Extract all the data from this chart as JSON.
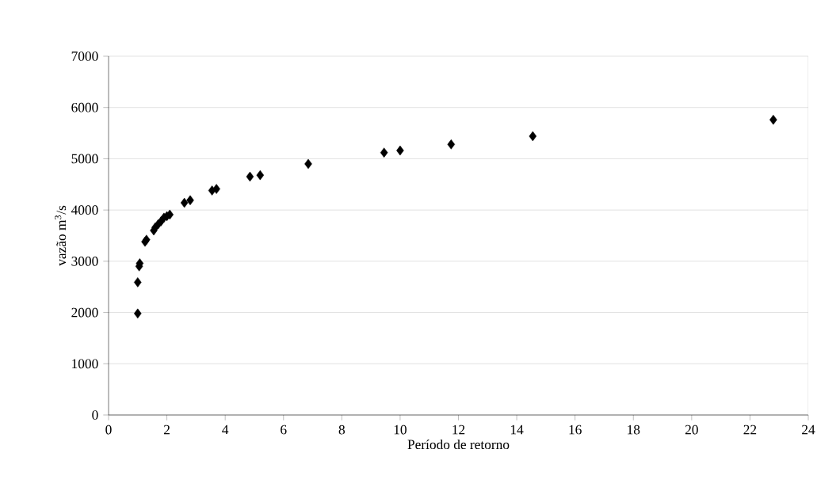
{
  "chart_data": {
    "type": "scatter",
    "xlabel": "Período de retorno",
    "ylabel": "vazão m$^{3}$/s",
    "x": [
      1.0,
      1.0,
      1.05,
      1.07,
      1.25,
      1.3,
      1.55,
      1.6,
      1.7,
      1.8,
      1.9,
      2.0,
      2.1,
      2.6,
      2.8,
      3.55,
      3.7,
      4.85,
      5.2,
      6.85,
      9.45,
      10.0,
      11.75,
      14.55,
      22.8
    ],
    "values": [
      1980,
      2590,
      2900,
      2960,
      3380,
      3420,
      3600,
      3660,
      3720,
      3780,
      3850,
      3880,
      3910,
      4140,
      4190,
      4380,
      4410,
      4650,
      4680,
      4900,
      5120,
      5160,
      5280,
      5440,
      5760
    ],
    "color": "#000000",
    "marker": "diamond",
    "grid": "y",
    "xlim": [
      0,
      24
    ],
    "xticks": [
      0,
      2,
      4,
      6,
      8,
      10,
      12,
      14,
      16,
      18,
      20,
      22,
      24
    ],
    "ylim": [
      0,
      7000
    ],
    "yticks": [
      0,
      1000,
      2000,
      3000,
      4000,
      5000,
      6000,
      7000
    ]
  }
}
